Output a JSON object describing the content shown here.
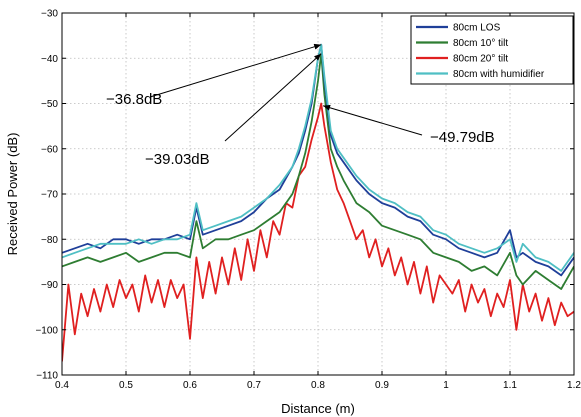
{
  "chart_data": {
    "type": "line",
    "title": "",
    "xlabel": "Distance (m)",
    "ylabel": "Received Power (dB)",
    "xlim": [
      0.4,
      1.2
    ],
    "ylim": [
      -110,
      -30
    ],
    "xticks": [
      0.4,
      0.5,
      0.6,
      0.7,
      0.8,
      0.9,
      1.0,
      1.1,
      1.2
    ],
    "xtick_labels": [
      "0.4",
      "0.5",
      "0.6",
      "0.7",
      "0.8",
      "0.9",
      "1",
      "1.1",
      "1.2"
    ],
    "yticks": [
      -110,
      -100,
      -90,
      -80,
      -70,
      -60,
      -50,
      -40,
      -30
    ],
    "ytick_labels": [
      "−110",
      "−100",
      "−90",
      "−80",
      "−70",
      "−60",
      "−50",
      "−40",
      "−30"
    ],
    "grid": true,
    "legend_position": "top-right",
    "series": [
      {
        "name": "80cm LOS",
        "color": "#1f3f99",
        "x": [
          0.4,
          0.42,
          0.44,
          0.46,
          0.48,
          0.5,
          0.52,
          0.54,
          0.56,
          0.58,
          0.6,
          0.61,
          0.62,
          0.64,
          0.66,
          0.68,
          0.7,
          0.72,
          0.74,
          0.76,
          0.77,
          0.78,
          0.79,
          0.8,
          0.805,
          0.81,
          0.82,
          0.83,
          0.84,
          0.86,
          0.88,
          0.9,
          0.92,
          0.94,
          0.96,
          0.98,
          1.0,
          1.02,
          1.04,
          1.06,
          1.08,
          1.1,
          1.11,
          1.12,
          1.14,
          1.16,
          1.18,
          1.2
        ],
        "y": [
          -83,
          -82,
          -81,
          -82,
          -80,
          -80,
          -81,
          -80,
          -80,
          -79,
          -80,
          -73,
          -79,
          -78,
          -77,
          -76,
          -74,
          -71,
          -69,
          -64,
          -61,
          -56,
          -50,
          -40,
          -37,
          -45,
          -57,
          -61,
          -63,
          -67,
          -70,
          -72,
          -73,
          -75,
          -76,
          -79,
          -80,
          -82,
          -83,
          -84,
          -83,
          -78,
          -84,
          -83,
          -85,
          -86,
          -88,
          -84
        ]
      },
      {
        "name": "80cm 10° tilt",
        "color": "#2e7d32",
        "x": [
          0.4,
          0.42,
          0.44,
          0.46,
          0.48,
          0.5,
          0.52,
          0.54,
          0.56,
          0.58,
          0.6,
          0.61,
          0.62,
          0.64,
          0.66,
          0.68,
          0.7,
          0.72,
          0.74,
          0.76,
          0.77,
          0.78,
          0.79,
          0.8,
          0.805,
          0.81,
          0.82,
          0.83,
          0.84,
          0.86,
          0.88,
          0.9,
          0.92,
          0.94,
          0.96,
          0.98,
          1.0,
          1.02,
          1.04,
          1.06,
          1.08,
          1.1,
          1.11,
          1.12,
          1.14,
          1.16,
          1.18,
          1.2
        ],
        "y": [
          -86,
          -85,
          -84,
          -85,
          -84,
          -83,
          -85,
          -84,
          -83,
          -83,
          -84,
          -76,
          -82,
          -80,
          -80,
          -79,
          -78,
          -76,
          -74,
          -70,
          -66,
          -61,
          -54,
          -45,
          -39,
          -48,
          -60,
          -64,
          -67,
          -72,
          -74,
          -77,
          -78,
          -79,
          -80,
          -83,
          -84,
          -85,
          -87,
          -86,
          -88,
          -83,
          -88,
          -90,
          -87,
          -89,
          -91,
          -86
        ]
      },
      {
        "name": "80cm 20° tilt",
        "color": "#e02020",
        "x": [
          0.4,
          0.41,
          0.42,
          0.43,
          0.44,
          0.45,
          0.46,
          0.47,
          0.48,
          0.49,
          0.5,
          0.51,
          0.52,
          0.53,
          0.54,
          0.55,
          0.56,
          0.57,
          0.58,
          0.59,
          0.6,
          0.61,
          0.62,
          0.63,
          0.64,
          0.65,
          0.66,
          0.67,
          0.68,
          0.69,
          0.7,
          0.71,
          0.72,
          0.73,
          0.74,
          0.75,
          0.76,
          0.77,
          0.78,
          0.79,
          0.8,
          0.805,
          0.81,
          0.82,
          0.83,
          0.84,
          0.85,
          0.86,
          0.87,
          0.88,
          0.89,
          0.9,
          0.91,
          0.92,
          0.93,
          0.94,
          0.95,
          0.96,
          0.97,
          0.98,
          0.99,
          1.0,
          1.01,
          1.02,
          1.03,
          1.04,
          1.05,
          1.06,
          1.07,
          1.08,
          1.09,
          1.1,
          1.11,
          1.12,
          1.13,
          1.14,
          1.15,
          1.16,
          1.17,
          1.18,
          1.19,
          1.2
        ],
        "y": [
          -107,
          -90,
          -101,
          -92,
          -97,
          -91,
          -96,
          -90,
          -95,
          -89,
          -93,
          -90,
          -96,
          -88,
          -94,
          -89,
          -95,
          -89,
          -93,
          -90,
          -102,
          -84,
          -93,
          -85,
          -92,
          -84,
          -90,
          -82,
          -89,
          -80,
          -87,
          -78,
          -84,
          -76,
          -79,
          -72,
          -73,
          -66,
          -64,
          -58,
          -53,
          -50,
          -55,
          -63,
          -69,
          -72,
          -76,
          -80,
          -78,
          -84,
          -80,
          -86,
          -82,
          -88,
          -84,
          -90,
          -85,
          -92,
          -86,
          -94,
          -88,
          -90,
          -92,
          -89,
          -96,
          -90,
          -94,
          -91,
          -97,
          -92,
          -95,
          -89,
          -100,
          -90,
          -96,
          -92,
          -98,
          -93,
          -99,
          -94,
          -97,
          -96
        ]
      },
      {
        "name": "80cm with humidifier",
        "color": "#4fbfc4",
        "x": [
          0.4,
          0.42,
          0.44,
          0.46,
          0.48,
          0.5,
          0.52,
          0.54,
          0.56,
          0.58,
          0.6,
          0.61,
          0.62,
          0.64,
          0.66,
          0.68,
          0.7,
          0.72,
          0.74,
          0.76,
          0.77,
          0.78,
          0.79,
          0.8,
          0.805,
          0.81,
          0.82,
          0.83,
          0.84,
          0.86,
          0.88,
          0.9,
          0.92,
          0.94,
          0.96,
          0.98,
          1.0,
          1.02,
          1.04,
          1.06,
          1.08,
          1.1,
          1.11,
          1.12,
          1.14,
          1.16,
          1.18,
          1.2
        ],
        "y": [
          -84,
          -83,
          -82,
          -81,
          -81,
          -81,
          -80,
          -81,
          -80,
          -80,
          -79,
          -72,
          -78,
          -77,
          -76,
          -75,
          -73,
          -71,
          -68,
          -64,
          -60,
          -55,
          -49,
          -40,
          -37,
          -44,
          -56,
          -60,
          -62,
          -66,
          -69,
          -71,
          -72,
          -74,
          -75,
          -78,
          -79,
          -81,
          -82,
          -83,
          -82,
          -80,
          -85,
          -81,
          -84,
          -85,
          -87,
          -83
        ]
      }
    ],
    "annotations": [
      {
        "text": "−36.8dB",
        "target": [
          0.805,
          -37
        ]
      },
      {
        "text": "−39.03dB",
        "target": [
          0.805,
          -39
        ]
      },
      {
        "text": "−49.79dB",
        "target": [
          0.808,
          -50.5
        ]
      }
    ]
  }
}
